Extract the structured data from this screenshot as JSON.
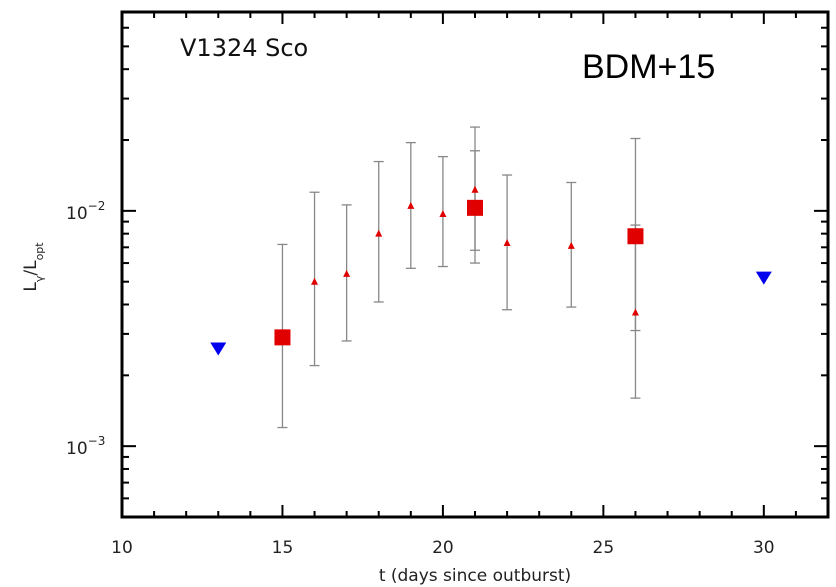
{
  "chart_data": {
    "type": "scatter",
    "xlabel": "t (days since outburst)",
    "ylabel": "L_γ/L_opt",
    "ylabel_parts": {
      "main": "L",
      "sub1": "γ",
      "slash": "/L",
      "sub2": "opt"
    },
    "xlim": [
      10,
      32
    ],
    "ylim": [
      0.0005,
      0.07
    ],
    "yscale": "log",
    "x_ticks": [
      10,
      15,
      20,
      25,
      30
    ],
    "x_tick_labels": [
      "10",
      "15",
      "20",
      "25",
      "30"
    ],
    "y_tick_labels": [
      {
        "value": 0.01,
        "base": "10",
        "exp": "−2"
      },
      {
        "value": 0.001,
        "base": "10",
        "exp": "−3"
      }
    ],
    "annotations": {
      "object": "V1324 Sco",
      "reference": "BDM+15"
    },
    "colors": {
      "triangles": "#e00000",
      "squares": "#e00000",
      "upper_limits": "#0000ee",
      "errorbars": "#888888"
    },
    "grid": false,
    "series": [
      {
        "marker": "triangle-up",
        "points": [
          {
            "x": 16,
            "y": 0.005,
            "lo": 0.0022,
            "hi": 0.012
          },
          {
            "x": 17,
            "y": 0.0054,
            "lo": 0.0028,
            "hi": 0.0106
          },
          {
            "x": 18,
            "y": 0.008,
            "lo": 0.0041,
            "hi": 0.0162
          },
          {
            "x": 19,
            "y": 0.0105,
            "lo": 0.0057,
            "hi": 0.0195
          },
          {
            "x": 20,
            "y": 0.0097,
            "lo": 0.0058,
            "hi": 0.017
          },
          {
            "x": 21,
            "y": 0.0123,
            "lo": 0.006,
            "hi": 0.0227
          },
          {
            "x": 22,
            "y": 0.0073,
            "lo": 0.0038,
            "hi": 0.0142
          },
          {
            "x": 24,
            "y": 0.0071,
            "lo": 0.0039,
            "hi": 0.0132
          },
          {
            "x": 26,
            "y": 0.0037,
            "lo": 0.0016,
            "hi": 0.0087
          }
        ]
      },
      {
        "marker": "square",
        "points": [
          {
            "x": 15,
            "y": 0.0029,
            "lo": 0.0012,
            "hi": 0.0072
          },
          {
            "x": 21,
            "y": 0.0103,
            "lo": 0.0068,
            "hi": 0.018
          },
          {
            "x": 26,
            "y": 0.0078,
            "lo": 0.0031,
            "hi": 0.0203
          }
        ]
      },
      {
        "marker": "triangle-down",
        "points": [
          {
            "x": 13,
            "y": 0.0026
          },
          {
            "x": 30,
            "y": 0.0052
          }
        ]
      }
    ]
  }
}
